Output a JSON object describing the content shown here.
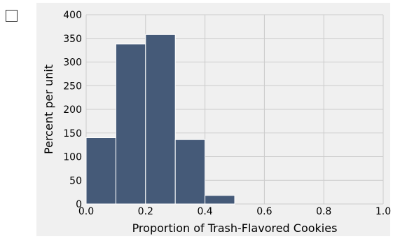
{
  "checkbox": {
    "checked": false,
    "icon": "checkbox-icon"
  },
  "chart_data": {
    "type": "bar",
    "subtype": "histogram",
    "title": "",
    "xlabel": "Proportion of Trash-Flavored Cookies",
    "ylabel": "Percent per unit",
    "xlim": [
      0.0,
      1.0
    ],
    "ylim": [
      0,
      400
    ],
    "x_ticks": [
      "0.0",
      "0.2",
      "0.4",
      "0.6",
      "0.8",
      "1.0"
    ],
    "y_ticks": [
      "0",
      "50",
      "100",
      "150",
      "200",
      "250",
      "300",
      "350",
      "400"
    ],
    "bins": [
      {
        "start": 0.0,
        "end": 0.1,
        "value": 140
      },
      {
        "start": 0.1,
        "end": 0.2,
        "value": 338
      },
      {
        "start": 0.2,
        "end": 0.3,
        "value": 358
      },
      {
        "start": 0.3,
        "end": 0.4,
        "value": 136
      },
      {
        "start": 0.4,
        "end": 0.5,
        "value": 18
      }
    ],
    "grid": true,
    "bar_color": "#455a78",
    "bar_edge_color": "#ffffff",
    "background_color": "#f0f0f0",
    "grid_color": "#cbcbcb"
  }
}
